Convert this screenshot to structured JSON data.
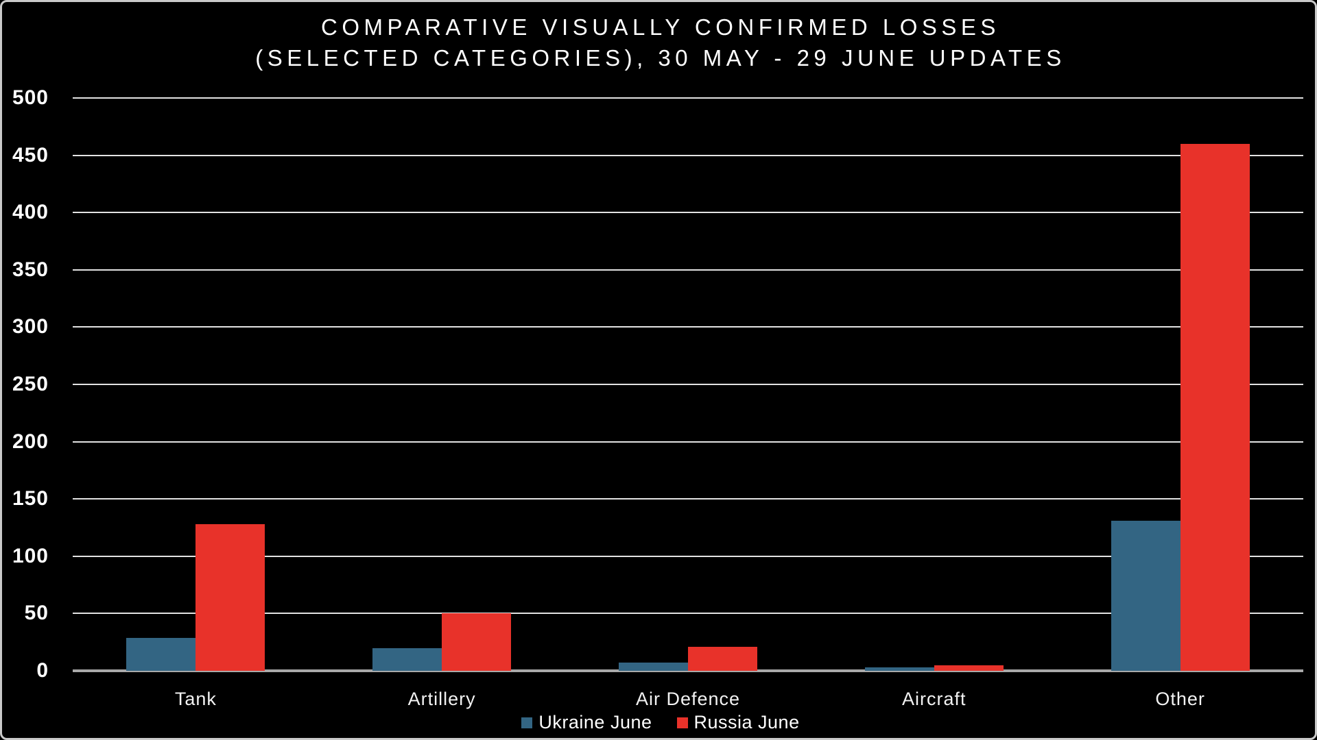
{
  "title": {
    "line1": "COMPARATIVE VISUALLY CONFIRMED LOSSES",
    "line2": "(SELECTED CATEGORIES), 30 MAY - 29 JUNE UPDATES"
  },
  "chart_data": {
    "type": "bar",
    "title": "COMPARATIVE VISUALLY CONFIRMED LOSSES (SELECTED CATEGORIES), 30 MAY - 29 JUNE UPDATES",
    "categories": [
      "Tank",
      "Artillery",
      "Air Defence",
      "Aircraft",
      "Other"
    ],
    "series": [
      {
        "name": "Ukraine June",
        "color": "#336583",
        "values": [
          29,
          20,
          7,
          3,
          131
        ]
      },
      {
        "name": "Russia June",
        "color": "#e8322a",
        "values": [
          128,
          50,
          21,
          5,
          460
        ]
      }
    ],
    "xlabel": "",
    "ylabel": "",
    "ylim": [
      0,
      500
    ],
    "ytick_step": 50,
    "grid": true,
    "legend_position": "bottom",
    "colors": {
      "background": "#000000",
      "text": "#ffffff",
      "gridline": "#e3e3e3",
      "axis_line": "#a9a9a9",
      "border": "#c9c9c9"
    }
  }
}
